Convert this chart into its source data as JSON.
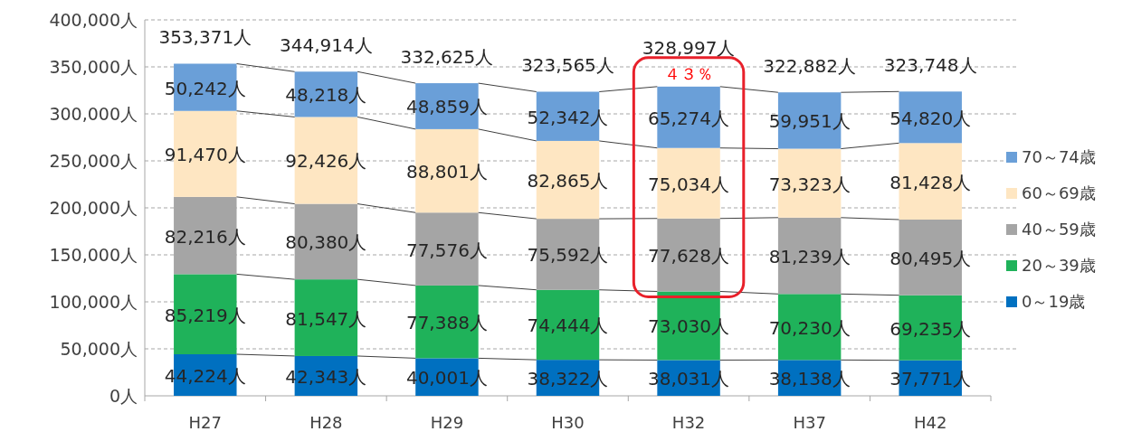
{
  "chart_data": {
    "type": "bar",
    "stacked": true,
    "categories": [
      "H27",
      "H28",
      "H29",
      "H30",
      "H32",
      "H37",
      "H42"
    ],
    "series": [
      {
        "name": "0～19歳",
        "color": "#0070c0",
        "values": [
          44224,
          42343,
          40001,
          38322,
          38031,
          38138,
          37771
        ],
        "value_labels": [
          "44,224人",
          "42,343人",
          "40,001人",
          "38,322人",
          "38,031人",
          "38,138人",
          "37,771人"
        ]
      },
      {
        "name": "20～39歳",
        "color": "#1fb25a",
        "values": [
          85219,
          81547,
          77388,
          74444,
          73030,
          70230,
          69235
        ],
        "value_labels": [
          "85,219人",
          "81,547人",
          "77,388人",
          "74,444人",
          "73,030人",
          "70,230人",
          "69,235人"
        ]
      },
      {
        "name": "40～59歳",
        "color": "#a5a5a5",
        "values": [
          82216,
          80380,
          77576,
          75592,
          77628,
          81239,
          80495
        ],
        "value_labels": [
          "82,216人",
          "80,380人",
          "77,576人",
          "75,592人",
          "77,628人",
          "81,239人",
          "80,495人"
        ]
      },
      {
        "name": "60～69歳",
        "color": "#fee6c2",
        "values": [
          91470,
          92426,
          88801,
          82865,
          75034,
          73323,
          81428
        ],
        "value_labels": [
          "91,470人",
          "92,426人",
          "88,801人",
          "82,865人",
          "75,034人",
          "73,323人",
          "81,428人"
        ]
      },
      {
        "name": "70～74歳",
        "color": "#6a9fd8",
        "values": [
          50242,
          48218,
          48859,
          52342,
          65274,
          59951,
          54820
        ],
        "value_labels": [
          "50,242人",
          "48,218人",
          "48,859人",
          "52,342人",
          "65,274人",
          "59,951人",
          "54,820人"
        ]
      }
    ],
    "totals": [
      "353,371人",
      "344,914人",
      "332,625人",
      "323,565人",
      "328,997人",
      "322,882人",
      "323,748人"
    ],
    "ylim": [
      0,
      400000
    ],
    "yticks": [
      {
        "value": 0,
        "label": "0人"
      },
      {
        "value": 50000,
        "label": "50,000人"
      },
      {
        "value": 100000,
        "label": "100,000人"
      },
      {
        "value": 150000,
        "label": "150,000人"
      },
      {
        "value": 200000,
        "label": "200,000人"
      },
      {
        "value": 250000,
        "label": "250,000人"
      },
      {
        "value": 300000,
        "label": "300,000人"
      },
      {
        "value": 350000,
        "label": "350,000人"
      },
      {
        "value": 400000,
        "label": "400,000人"
      }
    ],
    "grid": "y",
    "legend": "right",
    "annotations": [
      {
        "text": "４３％",
        "x": "H32",
        "y": 328997
      }
    ]
  }
}
